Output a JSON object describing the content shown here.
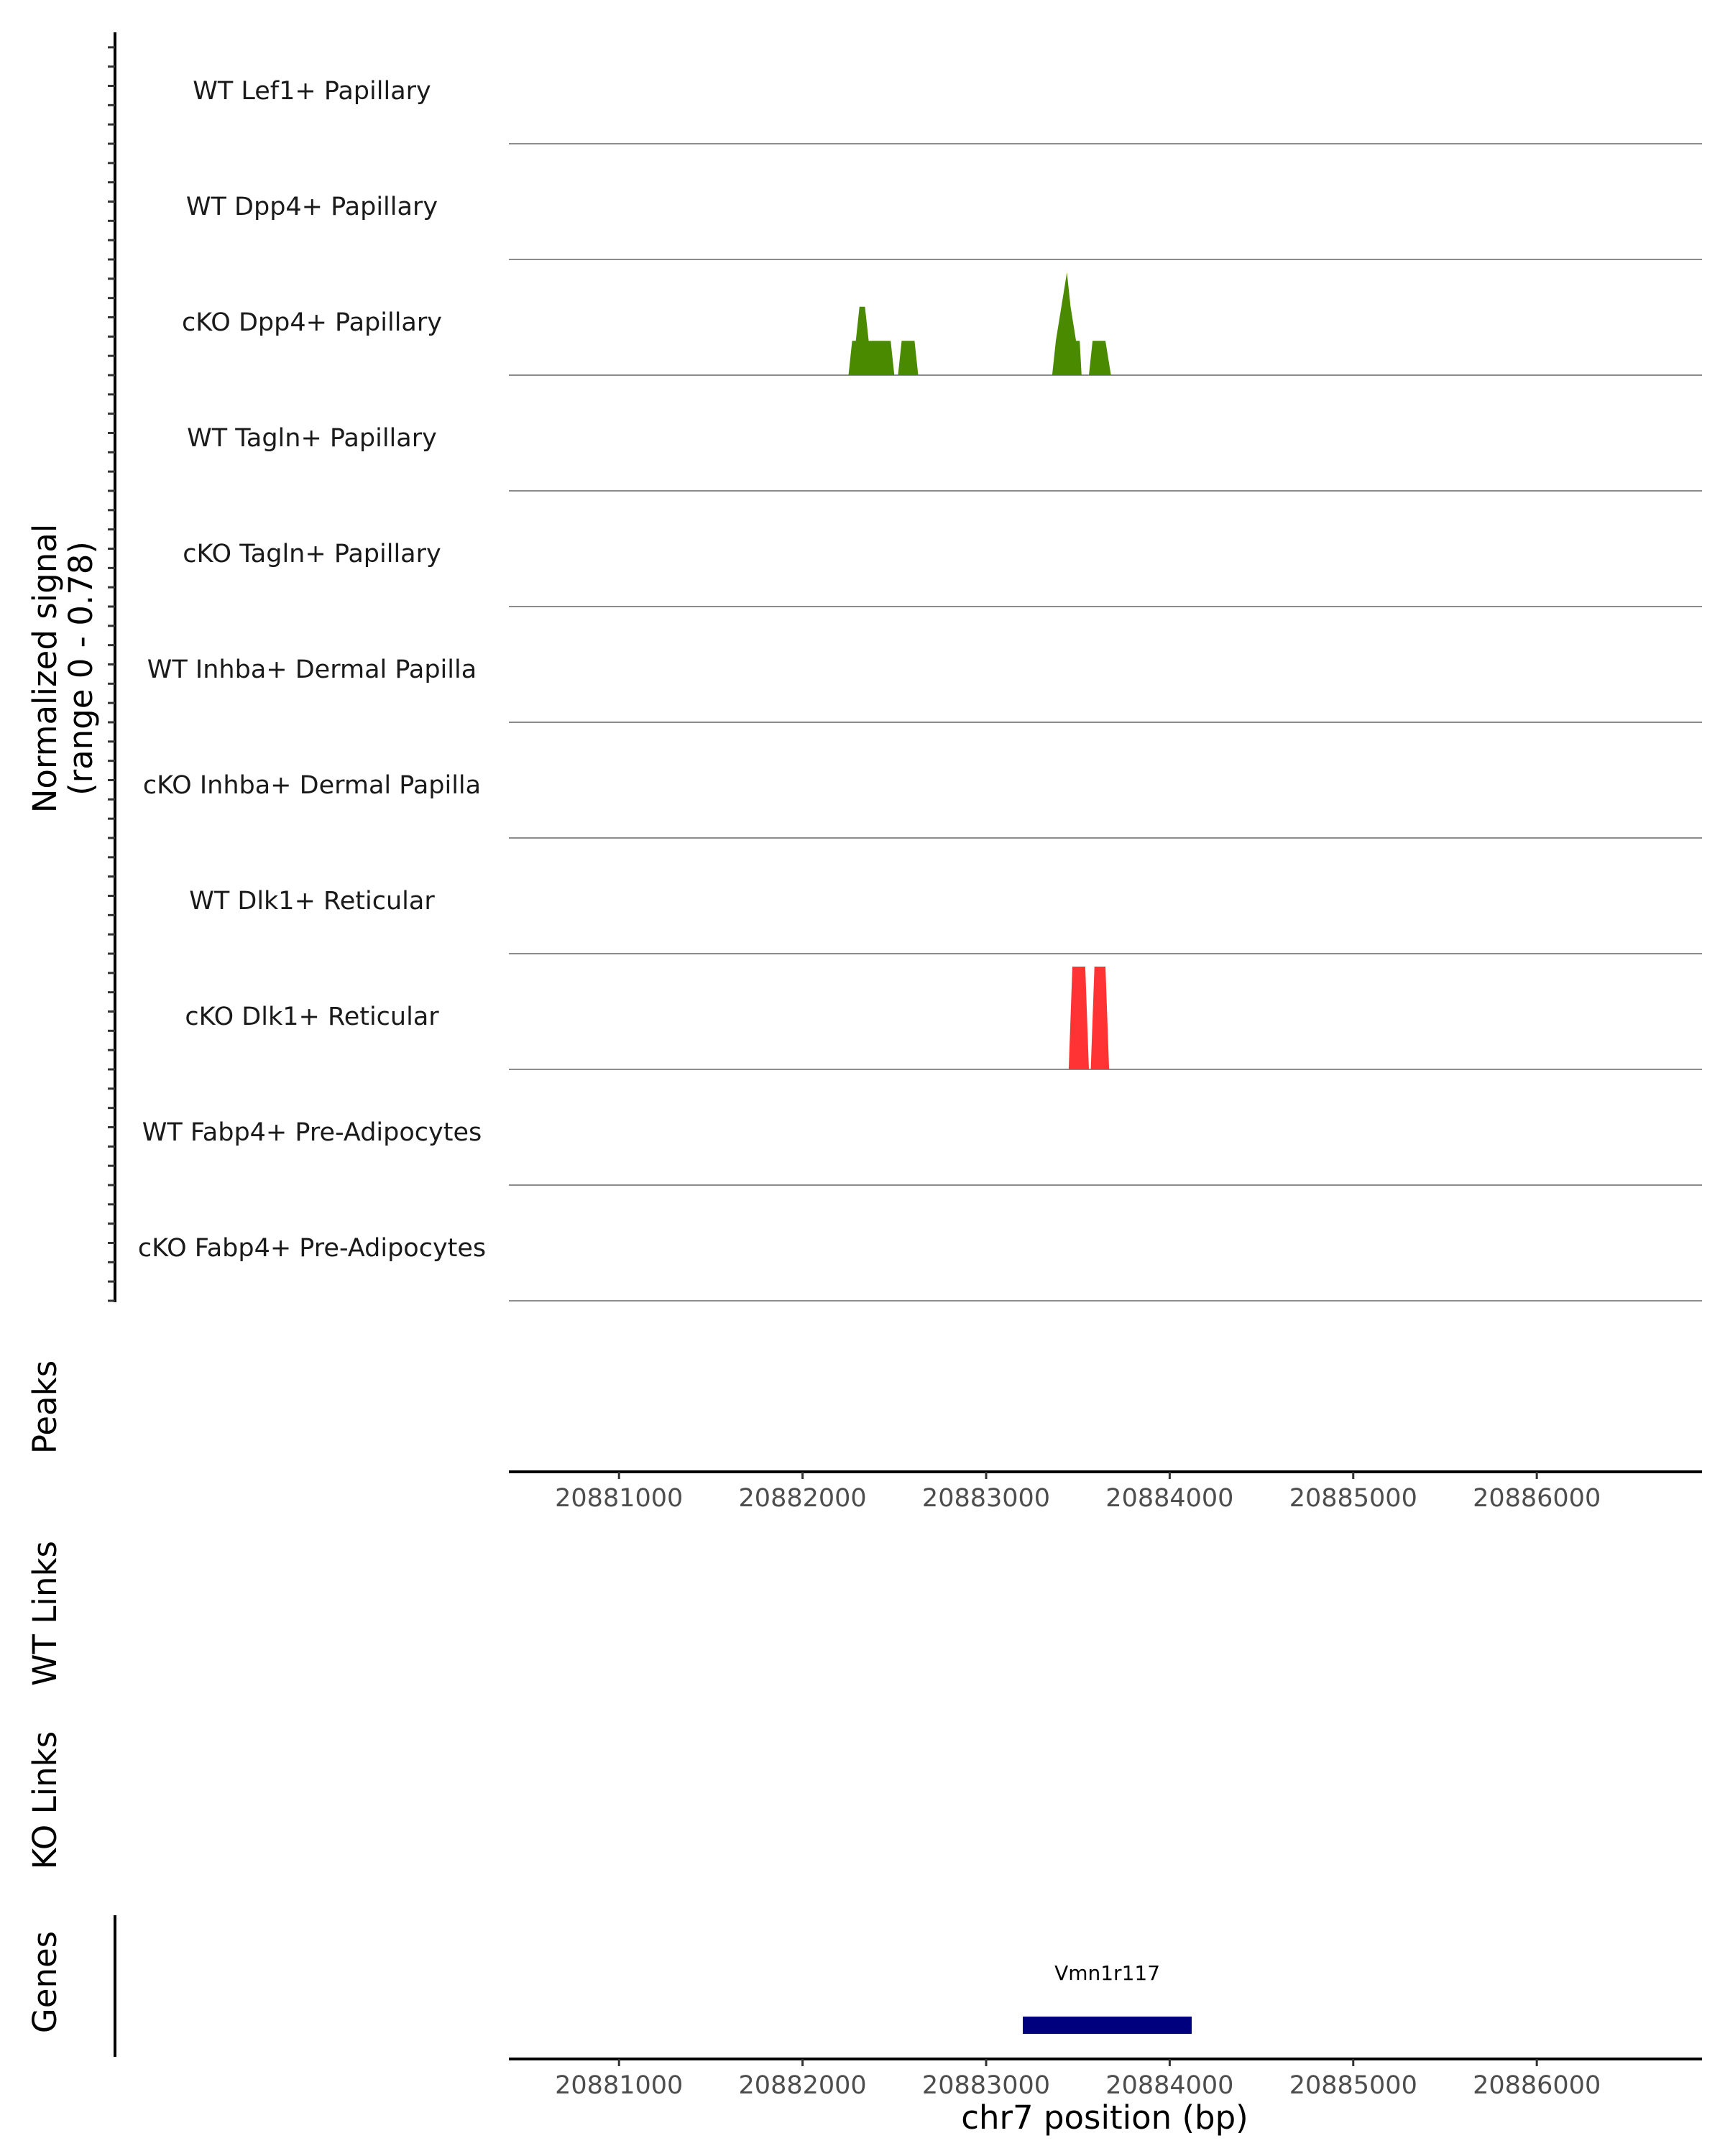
{
  "chart_data": {
    "type": "area",
    "title": "",
    "region": {
      "chrom": "chr7",
      "start": 20880400,
      "end": 20886900
    },
    "coverage": {
      "ylabel_line1": "Normalized signal",
      "ylabel_line2": "(range 0 - 0.78)",
      "ymax": 0.78,
      "tracks": [
        {
          "name": "WT Lef1+ Papillary",
          "color": "#4a8a00",
          "peaks": []
        },
        {
          "name": "WT Dpp4+ Papillary",
          "color": "#4a8a00",
          "peaks": []
        },
        {
          "name": "cKO Dpp4+ Papillary",
          "color": "#4a8a00",
          "peaks": [
            {
              "x": [
                20882250,
                20882270,
                20882290,
                20882310,
                20882340,
                20882360,
                20882390,
                20882480,
                20882500
              ],
              "y": [
                0,
                0.26,
                0.26,
                0.52,
                0.52,
                0.26,
                0.26,
                0.26,
                0
              ]
            },
            {
              "x": [
                20882520,
                20882540,
                20882610,
                20882630
              ],
              "y": [
                0,
                0.26,
                0.26,
                0
              ]
            },
            {
              "x": [
                20883360,
                20883380,
                20883410,
                20883440,
                20883460,
                20883490,
                20883510,
                20883520
              ],
              "y": [
                0,
                0.26,
                0.52,
                0.78,
                0.52,
                0.26,
                0.26,
                0
              ]
            },
            {
              "x": [
                20883560,
                20883580,
                20883650,
                20883680
              ],
              "y": [
                0,
                0.26,
                0.26,
                0
              ]
            }
          ]
        },
        {
          "name": "WT Tagln+ Papillary",
          "color": "#4a8a00",
          "peaks": []
        },
        {
          "name": "cKO Tagln+ Papillary",
          "color": "#4a8a00",
          "peaks": []
        },
        {
          "name": "WT Inhba+ Dermal Papilla",
          "color": "#4a8a00",
          "peaks": []
        },
        {
          "name": "cKO Inhba+ Dermal Papilla",
          "color": "#4a8a00",
          "peaks": []
        },
        {
          "name": "WT Dlk1+ Reticular",
          "color": "#ff3333",
          "peaks": []
        },
        {
          "name": "cKO Dlk1+ Reticular",
          "color": "#ff3333",
          "peaks": [
            {
              "x": [
                20883450,
                20883470,
                20883540,
                20883560
              ],
              "y": [
                0,
                0.78,
                0.78,
                0
              ]
            },
            {
              "x": [
                20883570,
                20883590,
                20883650,
                20883670
              ],
              "y": [
                0,
                0.78,
                0.78,
                0
              ]
            }
          ]
        },
        {
          "name": "WT Fabp4+ Pre-Adipocytes",
          "color": "#ff3333",
          "peaks": []
        },
        {
          "name": "cKO Fabp4+ Pre-Adipocytes",
          "color": "#ff3333",
          "peaks": []
        }
      ]
    },
    "panels": [
      {
        "label": "Peaks",
        "xticks": [
          20881000,
          20882000,
          20883000,
          20884000,
          20885000,
          20886000
        ]
      },
      {
        "label": "WT Links"
      },
      {
        "label": "KO Links"
      },
      {
        "label": "Genes",
        "xticks": [
          20881000,
          20882000,
          20883000,
          20884000,
          20885000,
          20886000
        ]
      }
    ],
    "genes": [
      {
        "name": "Vmn1r117",
        "start": 20883200,
        "end": 20884120,
        "color": "#00007f"
      }
    ],
    "xlabel": "chr7 position (bp)"
  }
}
